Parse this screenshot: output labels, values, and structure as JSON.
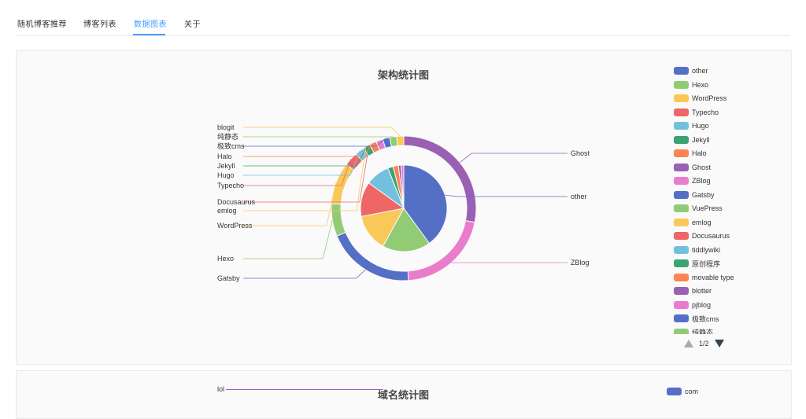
{
  "tabs": [
    {
      "label": "随机博客推荐",
      "active": false
    },
    {
      "label": "博客列表",
      "active": false
    },
    {
      "label": "数据图表",
      "active": true
    },
    {
      "label": "关于",
      "active": false
    }
  ],
  "card1": {
    "title": "架构统计图"
  },
  "card2": {
    "title": "域名统计图",
    "legend_first": "com",
    "label_first": "lol"
  },
  "legend": {
    "items": [
      {
        "name": "other",
        "color": "#5470c6"
      },
      {
        "name": "Hexo",
        "color": "#91cc75"
      },
      {
        "name": "WordPress",
        "color": "#fac858"
      },
      {
        "name": "Typecho",
        "color": "#ee6666"
      },
      {
        "name": "Hugo",
        "color": "#73c0de"
      },
      {
        "name": "Jekyll",
        "color": "#3ba272"
      },
      {
        "name": "Halo",
        "color": "#fc8452"
      },
      {
        "name": "Ghost",
        "color": "#9a60b4"
      },
      {
        "name": "ZBlog",
        "color": "#ea7ccc"
      },
      {
        "name": "Gatsby",
        "color": "#5470c6"
      },
      {
        "name": "VuePress",
        "color": "#91cc75"
      },
      {
        "name": "emlog",
        "color": "#fac858"
      },
      {
        "name": "Docusaurus",
        "color": "#ee6666"
      },
      {
        "name": "tiddlywiki",
        "color": "#73c0de"
      },
      {
        "name": "原创程序",
        "color": "#3ba272"
      },
      {
        "name": "movable type",
        "color": "#fc8452"
      },
      {
        "name": "blotter",
        "color": "#9a60b4"
      },
      {
        "name": "pjblog",
        "color": "#ea7ccc"
      },
      {
        "name": "极致cms",
        "color": "#5470c6"
      },
      {
        "name": "纯静态",
        "color": "#91cc75"
      }
    ],
    "page": "1/2"
  },
  "chart_data": {
    "type": "pie",
    "title": "架构统计图",
    "inner": [
      {
        "name": "other",
        "value": 40,
        "color": "#5470c6"
      },
      {
        "name": "Hexo",
        "value": 18,
        "color": "#91cc75"
      },
      {
        "name": "WordPress",
        "value": 14,
        "color": "#fac858"
      },
      {
        "name": "Typecho",
        "value": 13,
        "color": "#ee6666"
      },
      {
        "name": "Hugo",
        "value": 9,
        "color": "#73c0de"
      },
      {
        "name": "Jekyll",
        "value": 2,
        "color": "#3ba272"
      },
      {
        "name": "Halo",
        "value": 2,
        "color": "#fc8452"
      },
      {
        "name": "Ghost",
        "value": 1,
        "color": "#9a60b4"
      },
      {
        "name": "ZBlog",
        "value": 1,
        "color": "#ea7ccc"
      }
    ],
    "outer": [
      {
        "name": "Ghost",
        "value": 27,
        "color": "#9a60b4"
      },
      {
        "name": "ZBlog",
        "value": 20,
        "color": "#ea7ccc"
      },
      {
        "name": "Gatsby",
        "value": 19,
        "color": "#5470c6"
      },
      {
        "name": "Hexo",
        "value": 7,
        "color": "#91cc75"
      },
      {
        "name": "WordPress",
        "value": 9,
        "color": "#fac858"
      },
      {
        "name": "Typecho",
        "value": 3,
        "color": "#ee6666"
      },
      {
        "name": "Hugo",
        "value": 2,
        "color": "#73c0de"
      },
      {
        "name": "Jekyll",
        "value": 1.5,
        "color": "#3ba272"
      },
      {
        "name": "Halo",
        "value": 1.5,
        "color": "#fc8452"
      },
      {
        "name": "ZBlog",
        "value": 1.5,
        "color": "#ea7ccc"
      },
      {
        "name": "Gatsby",
        "value": 1.5,
        "color": "#5470c6"
      },
      {
        "name": "纯静态",
        "value": 1.5,
        "color": "#91cc75"
      },
      {
        "name": "blogit",
        "value": 1.5,
        "color": "#fac858"
      }
    ],
    "labels": {
      "right": [
        "Ghost",
        "other",
        "ZBlog"
      ],
      "left": [
        "blogit",
        "纯静态",
        "极致cms",
        "Halo",
        "Jekyll",
        "Hugo",
        "Typecho",
        "Docusaurus",
        "emlog",
        "WordPress",
        "Hexo",
        "Gatsby"
      ]
    }
  }
}
